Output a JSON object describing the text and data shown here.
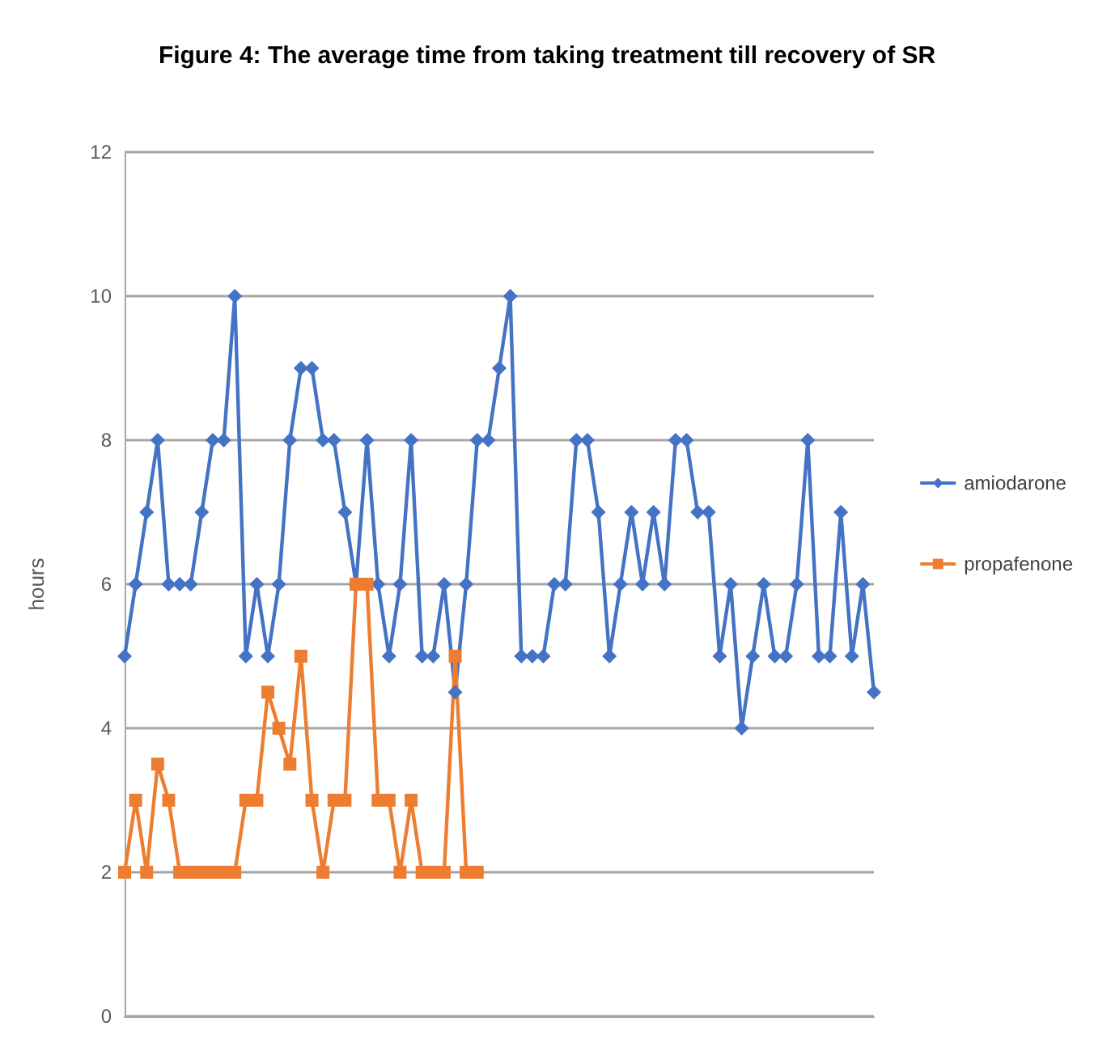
{
  "chart_data": {
    "type": "line",
    "title": "Figure 4: The average time from taking treatment till recovery of SR",
    "ylabel": "hours",
    "categories": [
      null,
      null,
      null,
      null,
      null,
      null,
      null,
      null,
      null,
      null,
      null,
      null,
      null,
      null,
      null,
      null,
      null,
      null,
      null,
      null,
      null,
      null,
      null,
      null,
      null,
      null,
      null,
      null,
      null,
      null,
      null,
      null,
      null,
      null,
      null,
      null,
      null,
      null,
      null,
      null,
      null,
      null,
      null,
      null,
      null,
      null,
      null,
      null,
      null,
      null,
      null,
      null,
      null,
      null,
      null,
      null,
      null,
      null,
      null,
      null,
      null,
      null,
      null,
      null,
      null,
      null,
      null,
      null,
      null
    ],
    "series": [
      {
        "name": "amiodarone",
        "color": "#4472c4",
        "marker": "diamond",
        "values": [
          5,
          6,
          7,
          8,
          6,
          6,
          6,
          7,
          8,
          8,
          10,
          5,
          6,
          5,
          6,
          8,
          9,
          9,
          8,
          8,
          7,
          6,
          8,
          6,
          5,
          6,
          8,
          5,
          5,
          6,
          4.5,
          6,
          8,
          8,
          9,
          10,
          5,
          5,
          5,
          6,
          6,
          8,
          8,
          7,
          5,
          6,
          7,
          6,
          7,
          6,
          8,
          8,
          7,
          7,
          5,
          6,
          4,
          5,
          6,
          5,
          5,
          6,
          8,
          5,
          5,
          7,
          5,
          6,
          4.5
        ]
      },
      {
        "name": "propafenone",
        "color": "#ed7d31",
        "marker": "square",
        "values": [
          2,
          3,
          2,
          3.5,
          3,
          2,
          2,
          2,
          2,
          2,
          2,
          3,
          3,
          4.5,
          4,
          3.5,
          5,
          3,
          2,
          3,
          3,
          6,
          6,
          3,
          3,
          2,
          3,
          2,
          2,
          2,
          5,
          2,
          2,
          null,
          null,
          null,
          null,
          null,
          null,
          null,
          null,
          null,
          null,
          null,
          null,
          null,
          null,
          null,
          null,
          null,
          null,
          null,
          null,
          null,
          null,
          null,
          null,
          null,
          null,
          null,
          null,
          null,
          null,
          null,
          null,
          null,
          null,
          null,
          null
        ]
      }
    ],
    "ylim": [
      0,
      12
    ],
    "yticks": [
      0,
      2,
      4,
      6,
      8,
      10,
      12
    ],
    "grid": "y",
    "legend": "right",
    "line_style": "solid"
  }
}
